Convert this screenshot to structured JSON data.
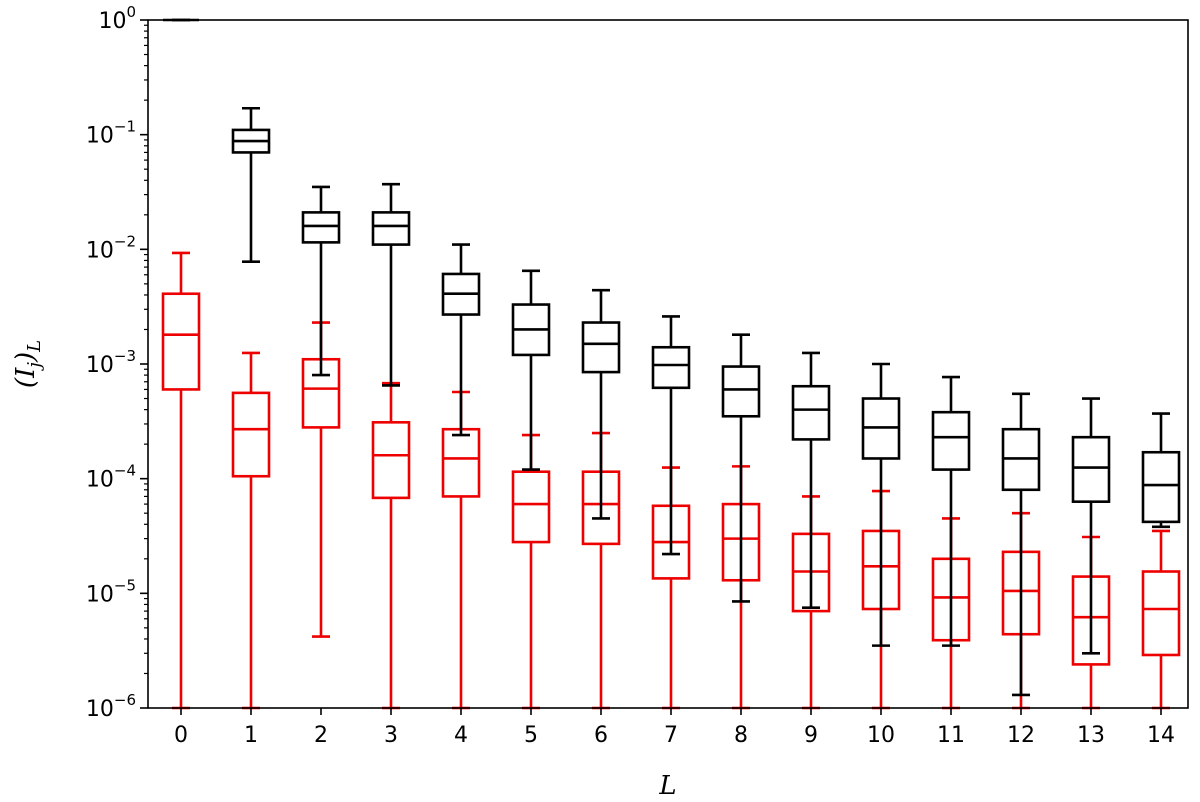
{
  "chart_data": {
    "type": "box",
    "xlabel": "L",
    "ylabel": "(I_j)_L",
    "yscale": "log",
    "ylim": [
      1e-06,
      1
    ],
    "y_ticks": [
      {
        "exp": "0",
        "value": 1
      },
      {
        "exp": "−1",
        "value": 0.1
      },
      {
        "exp": "−2",
        "value": 0.01
      },
      {
        "exp": "−3",
        "value": 0.001
      },
      {
        "exp": "−4",
        "value": 0.0001
      },
      {
        "exp": "−5",
        "value": 1e-05
      },
      {
        "exp": "−6",
        "value": 1e-06
      }
    ],
    "y_tick_base": "10",
    "categories": [
      "0",
      "1",
      "2",
      "3",
      "4",
      "5",
      "6",
      "7",
      "8",
      "9",
      "10",
      "11",
      "12",
      "13",
      "14"
    ],
    "grid": false,
    "series": [
      {
        "color": "#000000",
        "boxes": [
          {
            "L": 0,
            "whislo": 1.0,
            "q1": 1.0,
            "med": 1.0,
            "q3": 1.0,
            "whishi": 1.0
          },
          {
            "L": 1,
            "whislo": 0.0078,
            "q1": 0.07,
            "med": 0.088,
            "q3": 0.11,
            "whishi": 0.17
          },
          {
            "L": 2,
            "whislo": 0.0008,
            "q1": 0.0115,
            "med": 0.016,
            "q3": 0.021,
            "whishi": 0.035
          },
          {
            "L": 3,
            "whislo": 0.00065,
            "q1": 0.011,
            "med": 0.016,
            "q3": 0.021,
            "whishi": 0.037
          },
          {
            "L": 4,
            "whislo": 0.00024,
            "q1": 0.0027,
            "med": 0.0041,
            "q3": 0.0061,
            "whishi": 0.011
          },
          {
            "L": 5,
            "whislo": 0.00012,
            "q1": 0.0012,
            "med": 0.002,
            "q3": 0.0033,
            "whishi": 0.0065
          },
          {
            "L": 6,
            "whislo": 4.5e-05,
            "q1": 0.00085,
            "med": 0.0015,
            "q3": 0.0023,
            "whishi": 0.0044
          },
          {
            "L": 7,
            "whislo": 2.2e-05,
            "q1": 0.00062,
            "med": 0.00098,
            "q3": 0.0014,
            "whishi": 0.0026
          },
          {
            "L": 8,
            "whislo": 8.5e-06,
            "q1": 0.00035,
            "med": 0.0006,
            "q3": 0.00095,
            "whishi": 0.0018
          },
          {
            "L": 9,
            "whislo": 7.5e-06,
            "q1": 0.00022,
            "med": 0.0004,
            "q3": 0.00064,
            "whishi": 0.00125
          },
          {
            "L": 10,
            "whislo": 3.5e-06,
            "q1": 0.00015,
            "med": 0.00028,
            "q3": 0.0005,
            "whishi": 0.001
          },
          {
            "L": 11,
            "whislo": 3.5e-06,
            "q1": 0.00012,
            "med": 0.00023,
            "q3": 0.00038,
            "whishi": 0.00077
          },
          {
            "L": 12,
            "whislo": 1.3e-06,
            "q1": 8e-05,
            "med": 0.00015,
            "q3": 0.00027,
            "whishi": 0.00055
          },
          {
            "L": 13,
            "whislo": 3e-06,
            "q1": 6.3e-05,
            "med": 0.000125,
            "q3": 0.00023,
            "whishi": 0.0005
          },
          {
            "L": 14,
            "whislo": 3.8e-05,
            "q1": 4.2e-05,
            "med": 8.8e-05,
            "q3": 0.00017,
            "whishi": 0.00037
          }
        ]
      },
      {
        "color": "#ee0000",
        "boxes": [
          {
            "L": 0,
            "whislo": 1e-06,
            "q1": 0.0006,
            "med": 0.0018,
            "q3": 0.0041,
            "whishi": 0.0093
          },
          {
            "L": 1,
            "whislo": 1e-06,
            "q1": 0.000105,
            "med": 0.00027,
            "q3": 0.00056,
            "whishi": 0.00125
          },
          {
            "L": 2,
            "whislo": 4.2e-06,
            "q1": 0.00028,
            "med": 0.00061,
            "q3": 0.0011,
            "whishi": 0.0023
          },
          {
            "L": 3,
            "whislo": 1e-06,
            "q1": 6.8e-05,
            "med": 0.00016,
            "q3": 0.00031,
            "whishi": 0.00068
          },
          {
            "L": 4,
            "whislo": 1e-06,
            "q1": 7e-05,
            "med": 0.00015,
            "q3": 0.00027,
            "whishi": 0.00057
          },
          {
            "L": 5,
            "whislo": 1e-06,
            "q1": 2.8e-05,
            "med": 6e-05,
            "q3": 0.000115,
            "whishi": 0.00024
          },
          {
            "L": 6,
            "whislo": 1e-06,
            "q1": 2.7e-05,
            "med": 6e-05,
            "q3": 0.000115,
            "whishi": 0.00025
          },
          {
            "L": 7,
            "whislo": 1e-06,
            "q1": 1.35e-05,
            "med": 2.8e-05,
            "q3": 5.8e-05,
            "whishi": 0.000125
          },
          {
            "L": 8,
            "whislo": 1e-06,
            "q1": 1.3e-05,
            "med": 3e-05,
            "q3": 6e-05,
            "whishi": 0.000128
          },
          {
            "L": 9,
            "whislo": 1e-06,
            "q1": 7e-06,
            "med": 1.55e-05,
            "q3": 3.3e-05,
            "whishi": 7e-05
          },
          {
            "L": 10,
            "whislo": 1e-06,
            "q1": 7.3e-06,
            "med": 1.72e-05,
            "q3": 3.5e-05,
            "whishi": 7.8e-05
          },
          {
            "L": 11,
            "whislo": 1e-06,
            "q1": 3.9e-06,
            "med": 9.2e-06,
            "q3": 2e-05,
            "whishi": 4.5e-05
          },
          {
            "L": 12,
            "whislo": 1e-06,
            "q1": 4.4e-06,
            "med": 1.05e-05,
            "q3": 2.3e-05,
            "whishi": 5e-05
          },
          {
            "L": 13,
            "whislo": 1e-06,
            "q1": 2.4e-06,
            "med": 6.2e-06,
            "q3": 1.4e-05,
            "whishi": 3.1e-05
          },
          {
            "L": 14,
            "whislo": 1e-06,
            "q1": 2.9e-06,
            "med": 7.3e-06,
            "q3": 1.55e-05,
            "whishi": 3.5e-05
          }
        ]
      }
    ]
  }
}
